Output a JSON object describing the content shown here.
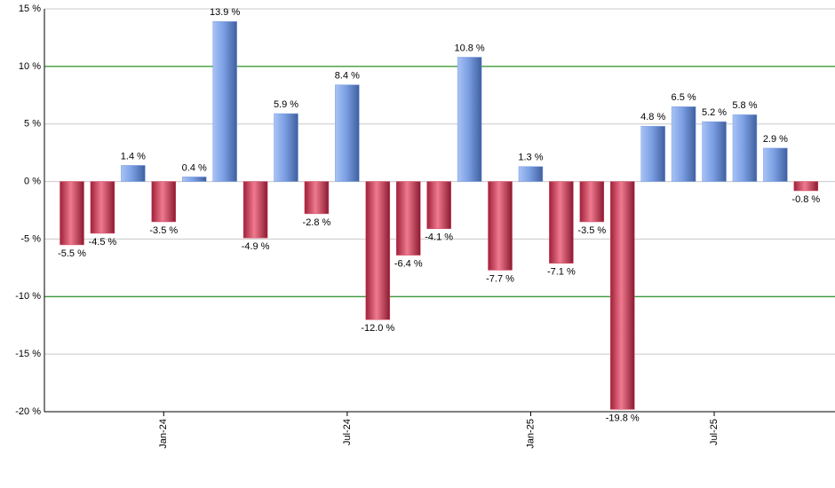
{
  "chart_data": {
    "type": "bar",
    "categories": [
      null,
      null,
      null,
      "Jan-24",
      null,
      null,
      null,
      null,
      null,
      "Jul-24",
      null,
      null,
      null,
      null,
      null,
      "Jan-25",
      null,
      null,
      null,
      null,
      null,
      "Jul-25",
      null,
      null,
      null
    ],
    "values": [
      -5.5,
      -4.5,
      1.4,
      -3.5,
      0.4,
      13.9,
      -4.9,
      5.9,
      -2.8,
      8.4,
      -12.0,
      -6.4,
      -4.1,
      10.8,
      -7.7,
      1.3,
      -7.1,
      -3.5,
      -19.8,
      4.8,
      6.5,
      5.2,
      5.8,
      2.9,
      -0.8
    ],
    "value_labels": [
      "-5.5 %",
      "-4.5 %",
      "1.4 %",
      "-3.5 %",
      "0.4 %",
      "13.9 %",
      "-4.9 %",
      "5.9 %",
      "-2.8 %",
      "8.4 %",
      "-12.0 %",
      "-6.4 %",
      "-4.1 %",
      "10.8 %",
      "-7.7 %",
      "1.3 %",
      "-7.1 %",
      "-3.5 %",
      "-19.8 %",
      "4.8 %",
      "6.5 %",
      "5.2 %",
      "5.8 %",
      "2.9 %",
      "-0.8 %"
    ],
    "positive_color": "#7b9fe3",
    "negative_color": "#d84560",
    "ylim": [
      -20,
      15
    ],
    "yticks": [
      {
        "value": -20,
        "label": "-20 %"
      },
      {
        "value": -15,
        "label": "-15 %"
      },
      {
        "value": -10,
        "label": "-10 %"
      },
      {
        "value": -5,
        "label": "-5 %"
      },
      {
        "value": 0,
        "label": "0 %"
      },
      {
        "value": 5,
        "label": "5 %"
      },
      {
        "value": 10,
        "label": "10 %"
      },
      {
        "value": 15,
        "label": "15 %"
      }
    ],
    "grid": true,
    "grid_color": "#c8c8c8",
    "accent_lines": [
      10,
      -10
    ],
    "accent_color": "#008000"
  }
}
